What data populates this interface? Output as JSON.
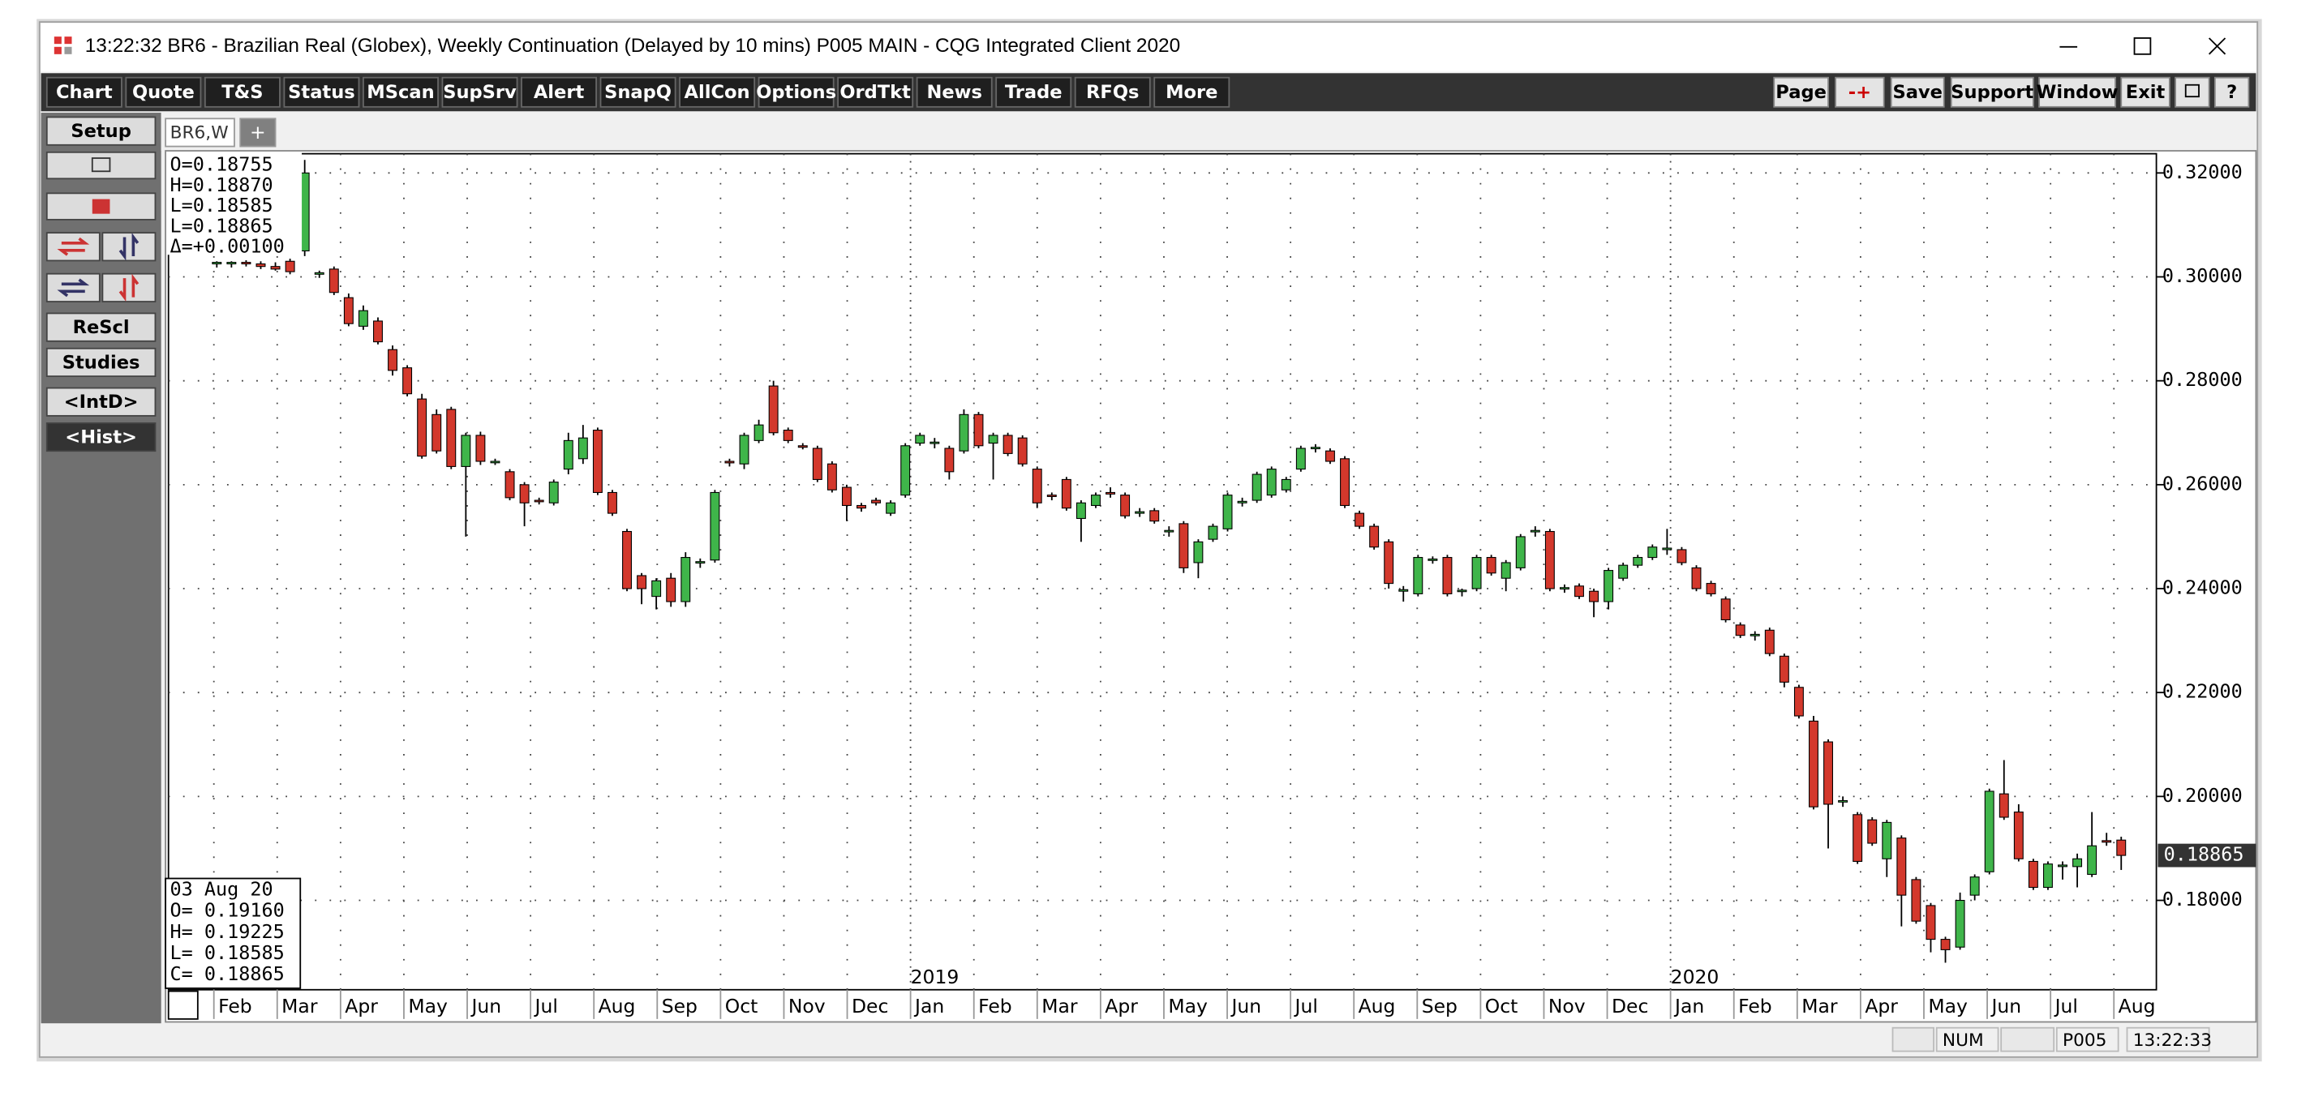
{
  "window": {
    "title": "13:22:32   BR6 - Brazilian Real (Globex), Weekly Continuation (Delayed by 10 mins)   P005 MAIN - CQG Integrated Client 2020"
  },
  "toolbar": {
    "left": [
      "Chart",
      "Quote",
      "T&S",
      "Status",
      "MScan",
      "SupSrv",
      "Alert",
      "SnapQ",
      "AllCon",
      "Options",
      "OrdTkt",
      "News",
      "Trade",
      "RFQs",
      "More"
    ],
    "right": [
      "Page",
      "-+",
      "Save",
      "Support",
      "Window",
      "Exit",
      "?"
    ]
  },
  "sidebar": {
    "top": [
      "Setup"
    ],
    "bottom": [
      "ReScl",
      "Studies",
      "<IntD>",
      "<Hist>"
    ]
  },
  "tabs": [
    "BR6,W",
    "+"
  ],
  "status_bar": [
    "NUM",
    "P005",
    "13:22:33"
  ],
  "chart_data": {
    "type": "candlestick",
    "up_color": "#3fb54a",
    "down_color": "#d3382c",
    "grid": true,
    "ylim": [
      0.1628,
      0.3237
    ],
    "yticks": [
      {
        "value": 0.18,
        "label": "0.18000"
      },
      {
        "value": 0.2,
        "label": "0.20000"
      },
      {
        "value": 0.22,
        "label": "0.22000"
      },
      {
        "value": 0.24,
        "label": "0.24000"
      },
      {
        "value": 0.26,
        "label": "0.26000"
      },
      {
        "value": 0.28,
        "label": "0.28000"
      },
      {
        "value": 0.3,
        "label": "0.30000"
      },
      {
        "value": 0.32,
        "label": "0.32000"
      }
    ],
    "x_labels": [
      "Feb",
      "Mar",
      "Apr",
      "May",
      "Jun",
      "Jul",
      "Aug",
      "Sep",
      "Oct",
      "Nov",
      "Dec",
      "Jan",
      "Feb",
      "Mar",
      "Apr",
      "May",
      "Jun",
      "Jul",
      "Aug",
      "Sep",
      "Oct",
      "Nov",
      "Dec",
      "Jan",
      "Feb",
      "Mar",
      "Apr",
      "May",
      "Jun",
      "Jul",
      "Aug"
    ],
    "year_labels": [
      "2019",
      "2020"
    ],
    "last_value_label": "0.18865",
    "cursor_box": [
      "O=0.18755",
      "H=0.18870",
      "L=0.18585",
      "L=0.18865",
      "Δ=+0.00100"
    ],
    "info_box": [
      "03 Aug 20",
      "O= 0.19160",
      "H= 0.19225",
      "L= 0.18585",
      "C= 0.18865"
    ],
    "open": [
      0.3025,
      0.3025,
      0.3028,
      0.3025,
      0.302,
      0.303,
      0.305,
      0.3005,
      0.3015,
      0.296,
      0.2905,
      0.2915,
      0.286,
      0.2825,
      0.2765,
      0.2735,
      0.2745,
      0.2635,
      0.2695,
      0.2645,
      0.2625,
      0.26,
      0.257,
      0.2565,
      0.263,
      0.265,
      0.2705,
      0.2585,
      0.251,
      0.2425,
      0.2385,
      0.242,
      0.2375,
      0.245,
      0.2455,
      0.2645,
      0.264,
      0.2685,
      0.279,
      0.2705,
      0.2675,
      0.267,
      0.264,
      0.2595,
      0.256,
      0.257,
      0.2545,
      0.258,
      0.268,
      0.268,
      0.267,
      0.2665,
      0.2735,
      0.268,
      0.2695,
      0.269,
      0.263,
      0.258,
      0.261,
      0.2535,
      0.256,
      0.2585,
      0.258,
      0.2545,
      0.255,
      0.251,
      0.2525,
      0.245,
      0.2495,
      0.2515,
      0.2565,
      0.257,
      0.258,
      0.259,
      0.263,
      0.267,
      0.2665,
      0.265,
      0.2545,
      0.252,
      0.249,
      0.2395,
      0.239,
      0.2455,
      0.246,
      0.2395,
      0.24,
      0.246,
      0.242,
      0.244,
      0.251,
      0.251,
      0.24,
      0.2405,
      0.2395,
      0.2375,
      0.242,
      0.2445,
      0.246,
      0.2475,
      0.2475,
      0.244,
      0.241,
      0.238,
      0.233,
      0.231,
      0.232,
      0.227,
      0.221,
      0.2145,
      0.2105,
      0.199,
      0.1965,
      0.1955,
      0.188,
      0.192,
      0.184,
      0.179,
      0.1725,
      0.171,
      0.181,
      0.1855,
      0.2005,
      0.197,
      0.1875,
      0.1825,
      0.1865,
      0.1865,
      0.185,
      0.1915,
      0.1916
    ],
    "high": [
      0.303,
      0.303,
      0.3032,
      0.303,
      0.3028,
      0.3035,
      0.3225,
      0.3012,
      0.302,
      0.2968,
      0.2945,
      0.2922,
      0.2868,
      0.283,
      0.2775,
      0.2745,
      0.275,
      0.27,
      0.2702,
      0.265,
      0.263,
      0.2605,
      0.2575,
      0.261,
      0.27,
      0.2715,
      0.271,
      0.259,
      0.2515,
      0.243,
      0.242,
      0.243,
      0.247,
      0.2458,
      0.259,
      0.265,
      0.27,
      0.2725,
      0.28,
      0.271,
      0.268,
      0.2675,
      0.2645,
      0.26,
      0.2565,
      0.2575,
      0.257,
      0.268,
      0.27,
      0.269,
      0.2675,
      0.2745,
      0.274,
      0.27,
      0.27,
      0.2695,
      0.2635,
      0.2585,
      0.2615,
      0.257,
      0.2585,
      0.2595,
      0.2585,
      0.2555,
      0.2555,
      0.252,
      0.253,
      0.2495,
      0.2525,
      0.2585,
      0.2575,
      0.2625,
      0.2635,
      0.2615,
      0.2675,
      0.2678,
      0.267,
      0.2655,
      0.255,
      0.2525,
      0.2495,
      0.2405,
      0.2465,
      0.2462,
      0.2465,
      0.24,
      0.2465,
      0.2465,
      0.2455,
      0.2505,
      0.252,
      0.2515,
      0.2408,
      0.241,
      0.24,
      0.244,
      0.245,
      0.2465,
      0.2485,
      0.2515,
      0.248,
      0.2445,
      0.2415,
      0.2385,
      0.2335,
      0.2318,
      0.2325,
      0.2275,
      0.2215,
      0.2155,
      0.211,
      0.2,
      0.197,
      0.196,
      0.1955,
      0.1925,
      0.1845,
      0.1795,
      0.173,
      0.1815,
      0.185,
      0.2015,
      0.207,
      0.1985,
      0.188,
      0.1875,
      0.1875,
      0.189,
      0.197,
      0.193,
      0.19225
    ],
    "low": [
      0.3018,
      0.3018,
      0.302,
      0.3015,
      0.3012,
      0.3005,
      0.304,
      0.2998,
      0.2965,
      0.2905,
      0.2898,
      0.287,
      0.281,
      0.277,
      0.265,
      0.266,
      0.263,
      0.25,
      0.2638,
      0.2638,
      0.257,
      0.252,
      0.2562,
      0.256,
      0.262,
      0.264,
      0.258,
      0.254,
      0.2395,
      0.237,
      0.236,
      0.2365,
      0.2365,
      0.244,
      0.245,
      0.2635,
      0.263,
      0.268,
      0.2695,
      0.268,
      0.2668,
      0.2605,
      0.2585,
      0.253,
      0.2548,
      0.256,
      0.254,
      0.2575,
      0.2675,
      0.267,
      0.261,
      0.266,
      0.267,
      0.261,
      0.2655,
      0.2635,
      0.2555,
      0.257,
      0.255,
      0.249,
      0.2555,
      0.2575,
      0.2535,
      0.2538,
      0.2525,
      0.25,
      0.243,
      0.242,
      0.249,
      0.251,
      0.2558,
      0.2565,
      0.2575,
      0.2585,
      0.2625,
      0.2662,
      0.264,
      0.2555,
      0.2515,
      0.2475,
      0.24,
      0.2375,
      0.2385,
      0.2448,
      0.2385,
      0.2385,
      0.2395,
      0.2425,
      0.2395,
      0.2435,
      0.25,
      0.2395,
      0.2392,
      0.238,
      0.2345,
      0.236,
      0.2415,
      0.244,
      0.2455,
      0.2465,
      0.2445,
      0.2395,
      0.2385,
      0.2335,
      0.2305,
      0.23,
      0.227,
      0.221,
      0.215,
      0.1975,
      0.19,
      0.198,
      0.187,
      0.1905,
      0.1845,
      0.175,
      0.1755,
      0.17,
      0.168,
      0.1705,
      0.18,
      0.185,
      0.1955,
      0.1875,
      0.182,
      0.182,
      0.184,
      0.1825,
      0.1845,
      0.1905,
      0.18585
    ],
    "close": [
      0.3028,
      0.3028,
      0.3025,
      0.302,
      0.3015,
      0.301,
      0.32,
      0.3008,
      0.297,
      0.291,
      0.2935,
      0.2875,
      0.282,
      0.2775,
      0.2655,
      0.2665,
      0.2635,
      0.2695,
      0.2645,
      0.2645,
      0.2575,
      0.2565,
      0.2568,
      0.2605,
      0.2685,
      0.269,
      0.2585,
      0.2545,
      0.24,
      0.24,
      0.2415,
      0.2375,
      0.246,
      0.2452,
      0.2585,
      0.2642,
      0.2695,
      0.2715,
      0.27,
      0.2685,
      0.2672,
      0.261,
      0.259,
      0.256,
      0.2555,
      0.2565,
      0.2565,
      0.2675,
      0.2695,
      0.2682,
      0.2625,
      0.2735,
      0.2675,
      0.2695,
      0.266,
      0.264,
      0.2565,
      0.2578,
      0.2555,
      0.2565,
      0.258,
      0.2582,
      0.254,
      0.2548,
      0.253,
      0.2512,
      0.244,
      0.249,
      0.252,
      0.258,
      0.2568,
      0.262,
      0.263,
      0.261,
      0.267,
      0.2672,
      0.2645,
      0.256,
      0.252,
      0.248,
      0.241,
      0.2398,
      0.246,
      0.2457,
      0.239,
      0.2397,
      0.246,
      0.243,
      0.245,
      0.25,
      0.2512,
      0.24,
      0.2402,
      0.2385,
      0.2375,
      0.2435,
      0.2445,
      0.246,
      0.248,
      0.2478,
      0.245,
      0.24,
      0.239,
      0.234,
      0.231,
      0.2312,
      0.2275,
      0.222,
      0.2155,
      0.198,
      0.1985,
      0.1992,
      0.1875,
      0.191,
      0.195,
      0.181,
      0.176,
      0.1725,
      0.1705,
      0.18,
      0.1845,
      0.201,
      0.196,
      0.188,
      0.1825,
      0.187,
      0.1868,
      0.188,
      0.1905,
      0.1912,
      0.18865
    ]
  }
}
